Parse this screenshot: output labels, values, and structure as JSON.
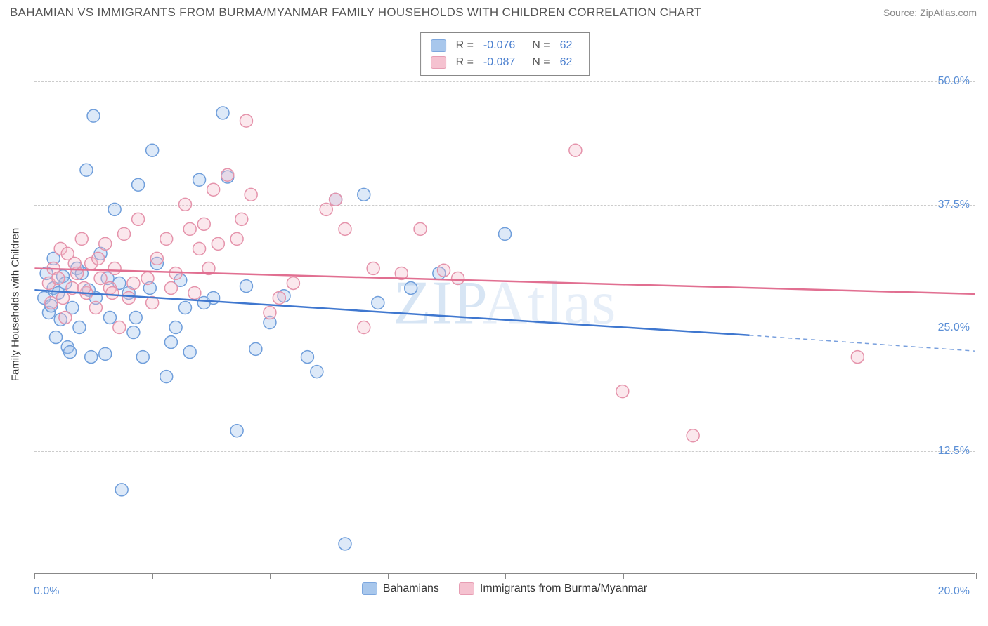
{
  "header": {
    "title": "BAHAMIAN VS IMMIGRANTS FROM BURMA/MYANMAR FAMILY HOUSEHOLDS WITH CHILDREN CORRELATION CHART",
    "source": "Source: ZipAtlas.com"
  },
  "chart": {
    "type": "scatter",
    "watermark": "ZIPAtlas",
    "y_axis_title": "Family Households with Children",
    "xlim": [
      0,
      20
    ],
    "ylim": [
      0,
      55
    ],
    "x_ticks": [
      0,
      2.5,
      5,
      7.5,
      10,
      12.5,
      15,
      17.5,
      20
    ],
    "x_tick_labels_shown": {
      "min": "0.0%",
      "max": "20.0%"
    },
    "y_gridlines": [
      12.5,
      25,
      37.5,
      50
    ],
    "y_tick_labels": [
      "12.5%",
      "25.0%",
      "37.5%",
      "50.0%"
    ],
    "background_color": "#ffffff",
    "grid_color": "#cccccc",
    "grid_dash": "4 4",
    "axis_color": "#888888",
    "marker_radius": 9,
    "marker_stroke_width": 1.5,
    "marker_fill_opacity": 0.35,
    "trend_line_width": 2.5,
    "series": [
      {
        "name": "Bahamians",
        "color_stroke": "#6f9edb",
        "color_fill": "#9fc1ea",
        "R": "-0.076",
        "N": "62",
        "trend": {
          "y_at_x0": 28.8,
          "y_at_x_solid_end": 24.2,
          "x_solid_end": 15.2,
          "y_at_xmax": 22.6,
          "dashed_after_solid": true,
          "line_color": "#3f77cf"
        },
        "points": [
          [
            0.2,
            28.0
          ],
          [
            0.3,
            26.5
          ],
          [
            0.4,
            29.0
          ],
          [
            0.35,
            27.2
          ],
          [
            0.5,
            28.5
          ],
          [
            0.55,
            25.8
          ],
          [
            0.6,
            30.2
          ],
          [
            0.4,
            32.0
          ],
          [
            0.7,
            23.0
          ],
          [
            0.75,
            22.5
          ],
          [
            0.8,
            27.0
          ],
          [
            0.9,
            31.0
          ],
          [
            1.0,
            30.5
          ],
          [
            1.1,
            41.0
          ],
          [
            1.2,
            22.0
          ],
          [
            1.25,
            46.5
          ],
          [
            1.3,
            28.0
          ],
          [
            1.4,
            32.5
          ],
          [
            1.5,
            22.3
          ],
          [
            1.6,
            26.0
          ],
          [
            1.7,
            37.0
          ],
          [
            1.8,
            29.5
          ],
          [
            1.85,
            8.5
          ],
          [
            2.0,
            28.5
          ],
          [
            2.1,
            24.5
          ],
          [
            2.2,
            39.5
          ],
          [
            2.3,
            22.0
          ],
          [
            2.5,
            43.0
          ],
          [
            2.6,
            31.5
          ],
          [
            2.8,
            20.0
          ],
          [
            2.9,
            23.5
          ],
          [
            3.1,
            29.8
          ],
          [
            3.2,
            27.0
          ],
          [
            3.3,
            22.5
          ],
          [
            3.5,
            40.0
          ],
          [
            3.6,
            27.5
          ],
          [
            3.8,
            28.0
          ],
          [
            4.0,
            46.8
          ],
          [
            4.1,
            40.3
          ],
          [
            4.3,
            14.5
          ],
          [
            4.5,
            29.2
          ],
          [
            4.7,
            22.8
          ],
          [
            5.0,
            25.5
          ],
          [
            5.3,
            28.2
          ],
          [
            5.8,
            22.0
          ],
          [
            6.0,
            20.5
          ],
          [
            6.4,
            38.0
          ],
          [
            6.6,
            3.0
          ],
          [
            7.0,
            38.5
          ],
          [
            7.3,
            27.5
          ],
          [
            8.0,
            29.0
          ],
          [
            8.6,
            30.5
          ],
          [
            10.0,
            34.5
          ],
          [
            0.25,
            30.5
          ],
          [
            0.45,
            24.0
          ],
          [
            0.65,
            29.5
          ],
          [
            0.95,
            25.0
          ],
          [
            1.15,
            28.8
          ],
          [
            1.55,
            30.0
          ],
          [
            2.15,
            26.0
          ],
          [
            2.45,
            29.0
          ],
          [
            3.0,
            25.0
          ]
        ]
      },
      {
        "name": "Immigrants from Burma/Myanmar",
        "color_stroke": "#e593ab",
        "color_fill": "#f4bccb",
        "R": "-0.087",
        "N": "62",
        "trend": {
          "y_at_x0": 31.0,
          "y_at_x_solid_end": 28.4,
          "x_solid_end": 20.0,
          "y_at_xmax": 28.4,
          "dashed_after_solid": false,
          "line_color": "#e16f91"
        },
        "points": [
          [
            0.3,
            29.5
          ],
          [
            0.4,
            31.0
          ],
          [
            0.5,
            30.0
          ],
          [
            0.55,
            33.0
          ],
          [
            0.6,
            28.0
          ],
          [
            0.7,
            32.5
          ],
          [
            0.8,
            29.0
          ],
          [
            0.9,
            30.5
          ],
          [
            1.0,
            34.0
          ],
          [
            1.1,
            28.5
          ],
          [
            1.2,
            31.5
          ],
          [
            1.3,
            27.0
          ],
          [
            1.4,
            30.0
          ],
          [
            1.5,
            33.5
          ],
          [
            1.6,
            29.0
          ],
          [
            1.7,
            31.0
          ],
          [
            1.8,
            25.0
          ],
          [
            1.9,
            34.5
          ],
          [
            2.0,
            28.0
          ],
          [
            2.2,
            36.0
          ],
          [
            2.4,
            30.0
          ],
          [
            2.6,
            32.0
          ],
          [
            2.8,
            34.0
          ],
          [
            3.0,
            30.5
          ],
          [
            3.2,
            37.5
          ],
          [
            3.3,
            35.0
          ],
          [
            3.5,
            33.0
          ],
          [
            3.6,
            35.5
          ],
          [
            3.7,
            31.0
          ],
          [
            3.8,
            39.0
          ],
          [
            3.9,
            33.5
          ],
          [
            4.1,
            40.5
          ],
          [
            4.3,
            34.0
          ],
          [
            4.4,
            36.0
          ],
          [
            4.5,
            46.0
          ],
          [
            4.6,
            38.5
          ],
          [
            5.0,
            26.5
          ],
          [
            5.2,
            28.0
          ],
          [
            5.5,
            29.5
          ],
          [
            6.2,
            37.0
          ],
          [
            6.4,
            38.0
          ],
          [
            6.6,
            35.0
          ],
          [
            7.0,
            25.0
          ],
          [
            7.2,
            31.0
          ],
          [
            7.8,
            30.5
          ],
          [
            8.2,
            35.0
          ],
          [
            8.7,
            30.8
          ],
          [
            9.0,
            30.0
          ],
          [
            11.5,
            43.0
          ],
          [
            12.5,
            18.5
          ],
          [
            14.0,
            14.0
          ],
          [
            17.5,
            22.0
          ],
          [
            0.35,
            27.5
          ],
          [
            0.65,
            26.0
          ],
          [
            0.85,
            31.5
          ],
          [
            1.05,
            29.0
          ],
          [
            1.35,
            32.0
          ],
          [
            1.65,
            28.5
          ],
          [
            2.1,
            29.5
          ],
          [
            2.5,
            27.5
          ],
          [
            2.9,
            29.0
          ],
          [
            3.4,
            28.5
          ]
        ]
      }
    ],
    "legend_top": {
      "border_color": "#888888",
      "stat_label_color": "#555555",
      "stat_value_color": "#4a7fcf"
    },
    "legend_bottom": {
      "text_color": "#333333"
    }
  }
}
